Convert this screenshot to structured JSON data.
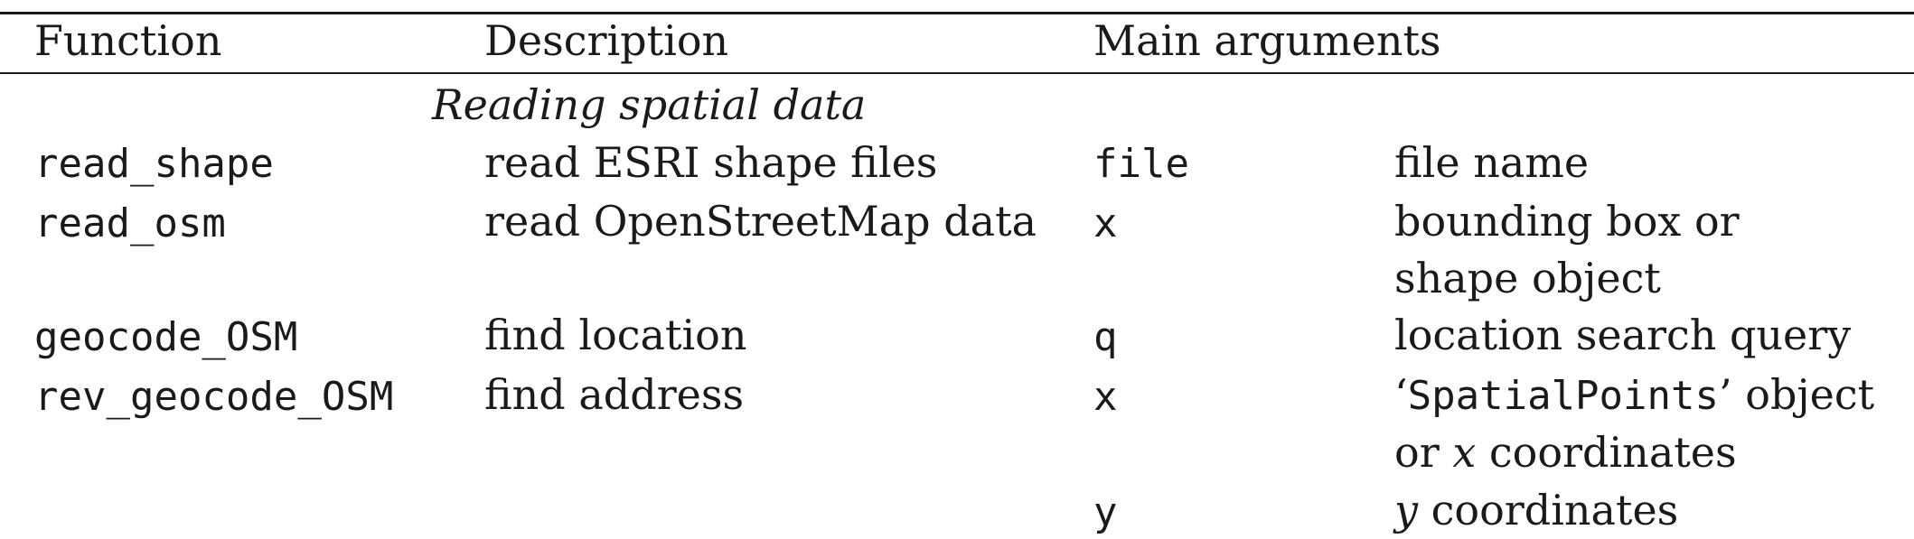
{
  "header": {
    "function": "Function",
    "description": "Description",
    "main_arguments": "Main arguments"
  },
  "section_title": "Reading spatial data",
  "rows": [
    {
      "function": "read_shape",
      "description": "read ESRI shape files",
      "args": [
        {
          "name": "file",
          "desc": [
            "file name"
          ]
        }
      ]
    },
    {
      "function": "read_osm",
      "description": "read OpenStreetMap data",
      "args": [
        {
          "name": "x",
          "desc": [
            "bounding box or",
            "shape object"
          ]
        }
      ]
    },
    {
      "function": "geocode_OSM",
      "description": "find location",
      "args": [
        {
          "name": "q",
          "desc": [
            "location search query"
          ]
        }
      ]
    },
    {
      "function": "rev_geocode_OSM",
      "description": "find address",
      "args": [
        {
          "name": "x",
          "desc_open_quote": "‘",
          "desc_code": "SpatialPoints",
          "desc_close": "’ object",
          "desc_line2_prefix": "or ",
          "desc_line2_var": "x",
          "desc_line2_suffix": " coordinates"
        },
        {
          "name": "y",
          "desc_var": "y",
          "desc_suffix": " coordinates"
        }
      ]
    }
  ]
}
